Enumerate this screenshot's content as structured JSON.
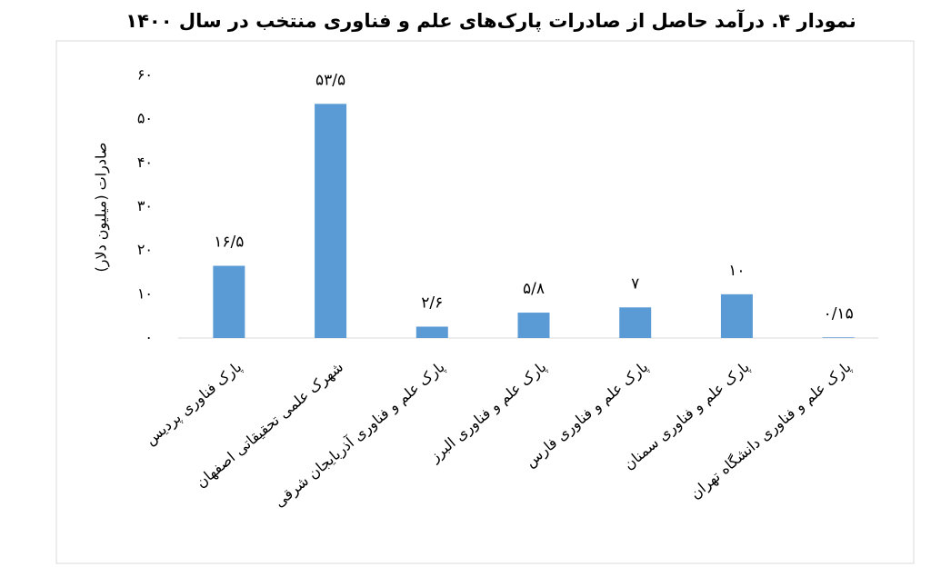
{
  "chart_data": {
    "type": "bar",
    "title": "نمودار ۴. درآمد حاصل از صادرات پارک‌های علم و فناوری منتخب در سال ۱۴۰۰",
    "y_label": "صادرات (میلیون دلار)",
    "categories": [
      "پارک فناوری پردیس",
      "شهرک علمی تحقیقاتی اصفهان",
      "پارک علم و فناوری آذربایجان شرقی",
      "پارک علم و فناوری البرز",
      "پارک علم و فناوری فارس",
      "پارک علم و فناوری سمنان",
      "پارک علم و فناوری دانشگاه تهران"
    ],
    "values": [
      16.5,
      53.5,
      2.6,
      5.8,
      7,
      10,
      0.15
    ],
    "value_labels": [
      "۱۶/۵",
      "۵۳/۵",
      "۲/۶",
      "۵/۸",
      "۷",
      "۱۰",
      "۰/۱۵"
    ],
    "color": "#5b9bd5",
    "ylim": [
      0,
      60
    ],
    "yticks": [
      {
        "value": 0,
        "label": "۰"
      },
      {
        "value": 10,
        "label": "۱۰"
      },
      {
        "value": 20,
        "label": "۲۰"
      },
      {
        "value": 30,
        "label": "۳۰"
      },
      {
        "value": 40,
        "label": "۴۰"
      },
      {
        "value": 50,
        "label": "۵۰"
      },
      {
        "value": 60,
        "label": "۶۰"
      }
    ],
    "grid": false
  }
}
